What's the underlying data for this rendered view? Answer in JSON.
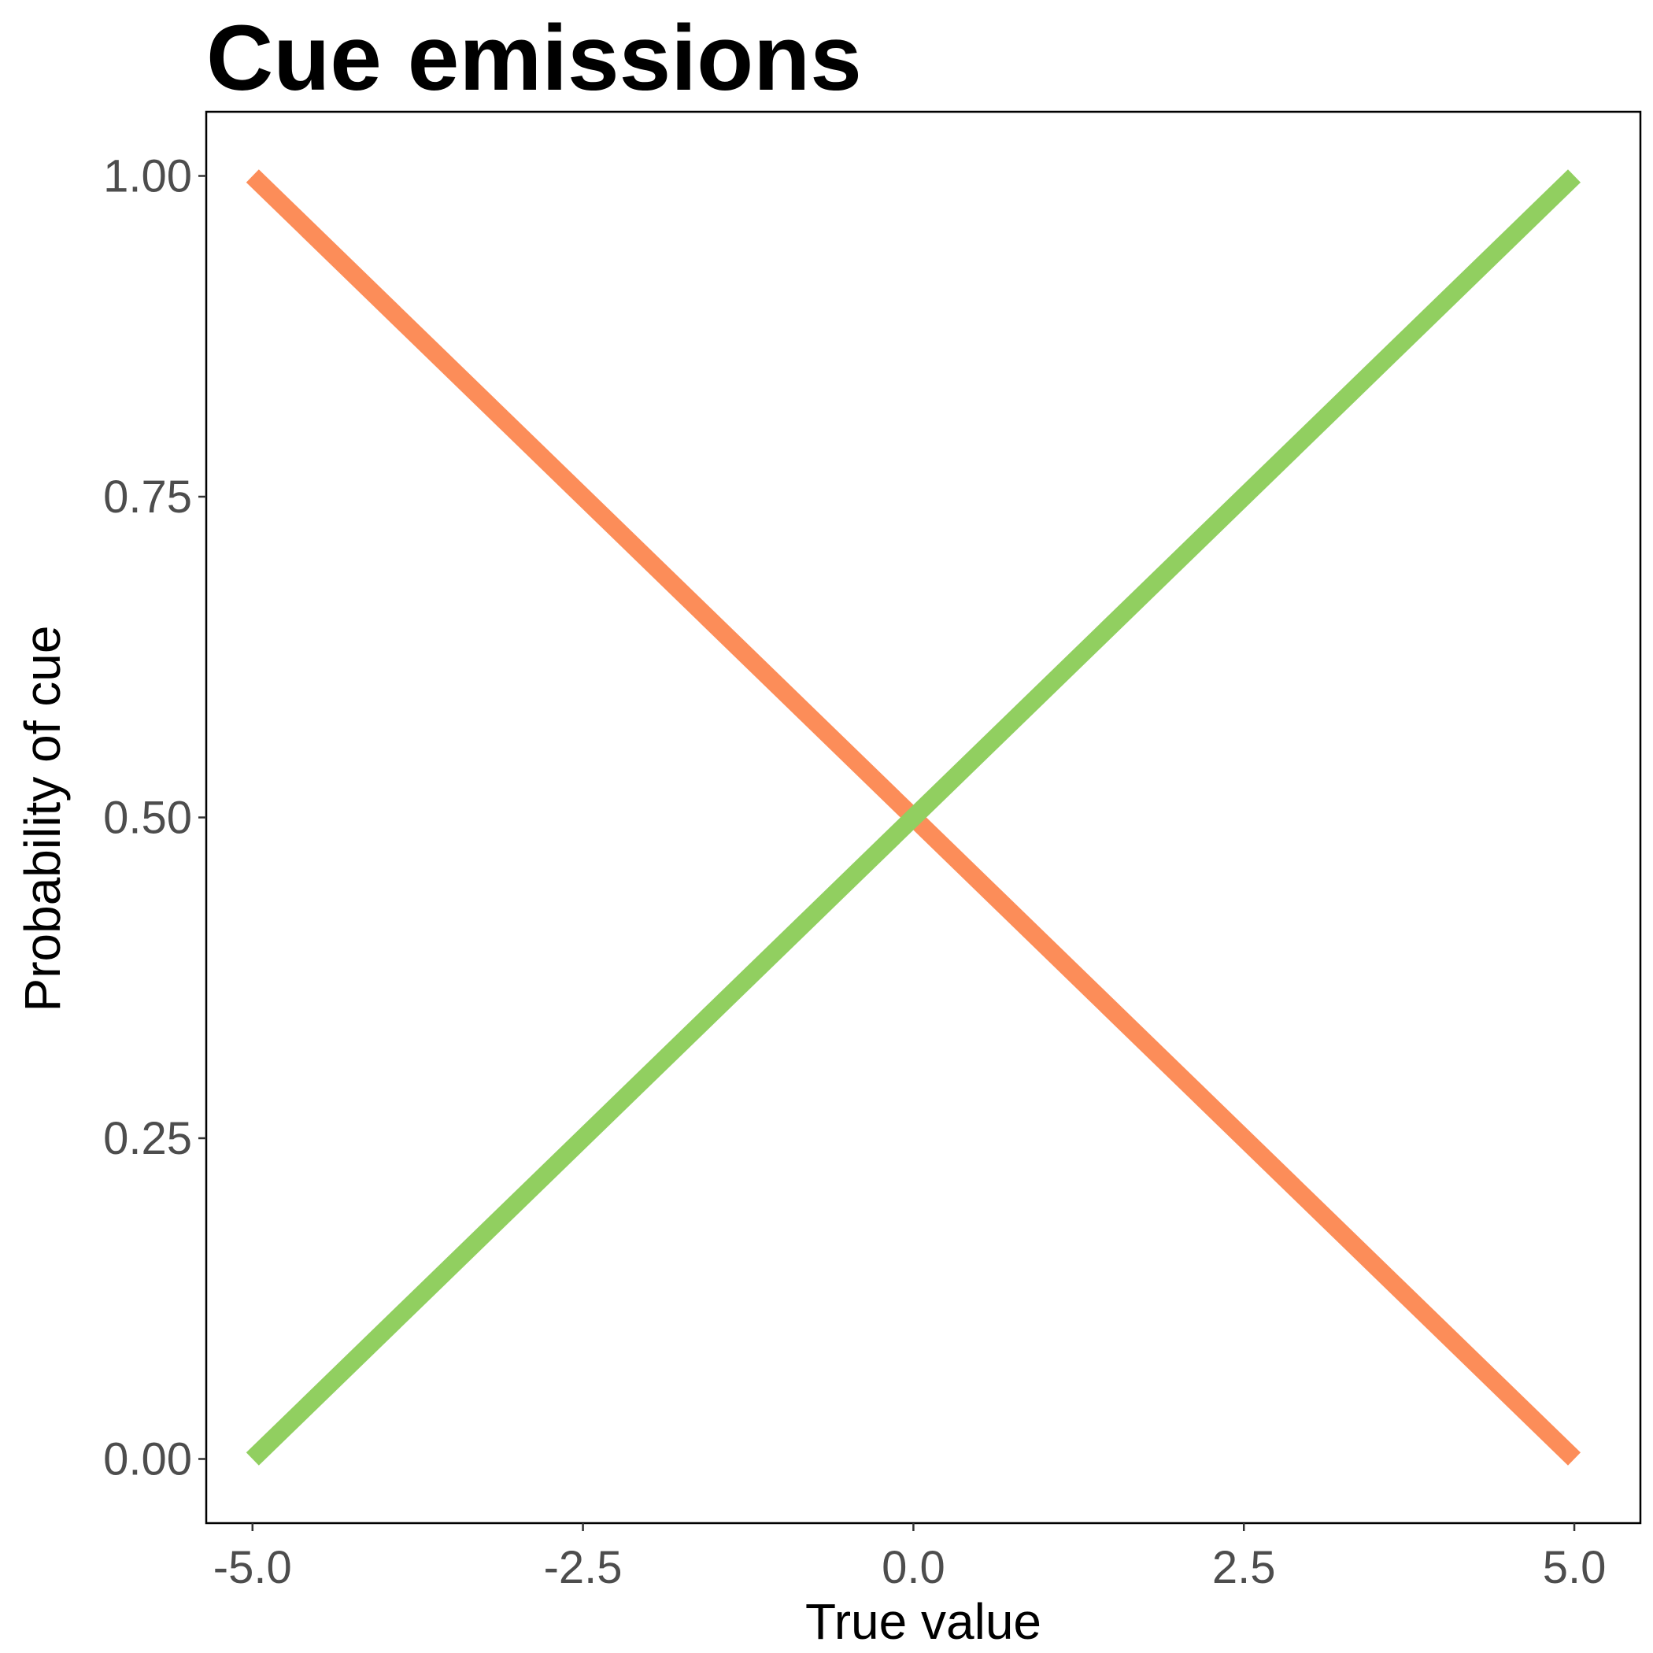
{
  "chart_data": {
    "type": "line",
    "title": "Cue emissions",
    "xlabel": "True value",
    "ylabel": "Probability of cue",
    "xlim": [
      -5.35,
      5.5
    ],
    "ylim": [
      -0.05,
      1.05
    ],
    "x_ticks": [
      -5.0,
      -2.5,
      0.0,
      2.5,
      5.0
    ],
    "x_tick_labels": [
      "-5.0",
      "-2.5",
      "0.0",
      "2.5",
      "5.0"
    ],
    "y_ticks": [
      0.0,
      0.25,
      0.5,
      0.75,
      1.0
    ],
    "y_tick_labels": [
      "0.00",
      "0.25",
      "0.50",
      "0.75",
      "1.00"
    ],
    "grid": false,
    "legend": "none",
    "series": [
      {
        "color": "#fc8d59",
        "x": [
          -5.0,
          5.0
        ],
        "y": [
          1.0,
          0.0
        ]
      },
      {
        "color": "#91cf60",
        "x": [
          -5.0,
          5.0
        ],
        "y": [
          0.0,
          1.0
        ]
      }
    ]
  }
}
